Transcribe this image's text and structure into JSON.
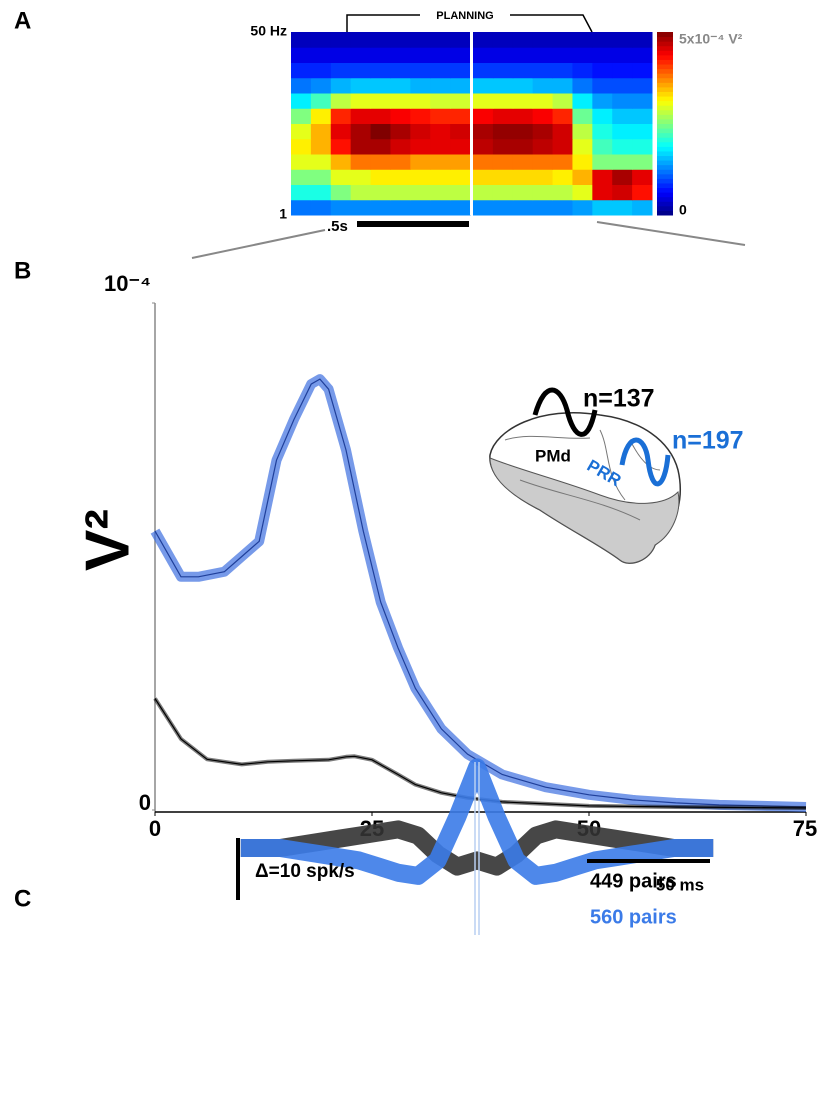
{
  "chart_data": [
    {
      "type": "heatmap",
      "panel_label": "A",
      "title": "PLANNING",
      "ylim": [
        1,
        50
      ],
      "yticks": [
        {
          "value": 50,
          "label": "50 Hz"
        },
        1
      ],
      "scale_bar": ".5s",
      "colorbar": {
        "lim": [
          0,
          5
        ],
        "ticks": [
          {
            "value": 5,
            "label": "5x10⁻⁴ V²"
          },
          0
        ]
      },
      "z": [
        [
          1.2,
          1.2,
          1.3,
          1.3,
          1.3,
          1.3,
          1.3,
          1.3,
          1.3,
          1.3,
          1.3,
          1.3,
          1.3,
          1.3,
          1.4,
          1.6,
          1.6,
          1.5
        ],
        [
          2,
          2,
          2.5,
          2.8,
          2.8,
          2.8,
          2.8,
          2.8,
          2.8,
          2.8,
          2.8,
          2.8,
          2.8,
          2.8,
          3,
          4.5,
          4.6,
          4.3
        ],
        [
          2.5,
          2.5,
          3,
          3,
          3.2,
          3.2,
          3.2,
          3.2,
          3.2,
          3.3,
          3.3,
          3.3,
          3.3,
          3.2,
          3.5,
          4.5,
          4.8,
          4.5
        ],
        [
          3,
          3,
          3.5,
          3.8,
          3.8,
          3.8,
          3.6,
          3.6,
          3.6,
          3.8,
          3.8,
          3.8,
          3.8,
          3.8,
          3.2,
          2.5,
          2.5,
          2.5
        ],
        [
          3.2,
          3.5,
          4.3,
          4.8,
          4.8,
          4.6,
          4.5,
          4.5,
          4.5,
          4.7,
          4.8,
          4.8,
          4.7,
          4.6,
          3,
          2.2,
          2,
          2
        ],
        [
          3,
          3.5,
          4.5,
          4.8,
          5,
          4.8,
          4.6,
          4.5,
          4.6,
          4.8,
          4.9,
          4.9,
          4.8,
          4.6,
          2.8,
          2,
          1.8,
          1.8
        ],
        [
          2.5,
          3.2,
          4.2,
          4.5,
          4.5,
          4.4,
          4.3,
          4.2,
          4.2,
          4.4,
          4.5,
          4.5,
          4.4,
          4.2,
          2.4,
          1.8,
          1.6,
          1.6
        ],
        [
          1.8,
          2.2,
          2.8,
          3,
          3,
          3,
          3,
          2.9,
          2.9,
          3,
          3,
          3,
          3,
          2.8,
          1.8,
          1.4,
          1.3,
          1.3
        ],
        [
          1.2,
          1.3,
          1.5,
          1.6,
          1.6,
          1.6,
          1.5,
          1.5,
          1.5,
          1.6,
          1.6,
          1.6,
          1.5,
          1.5,
          1.2,
          1,
          1,
          1
        ],
        [
          0.8,
          0.8,
          0.9,
          0.9,
          0.9,
          0.9,
          0.9,
          0.9,
          0.9,
          0.9,
          0.9,
          0.9,
          0.9,
          0.9,
          0.8,
          0.7,
          0.7,
          0.7
        ],
        [
          0.5,
          0.5,
          0.5,
          0.5,
          0.5,
          0.5,
          0.5,
          0.5,
          0.5,
          0.5,
          0.5,
          0.5,
          0.5,
          0.5,
          0.5,
          0.5,
          0.5,
          0.5
        ],
        [
          0.3,
          0.3,
          0.3,
          0.3,
          0.3,
          0.3,
          0.3,
          0.3,
          0.3,
          0.3,
          0.3,
          0.3,
          0.3,
          0.3,
          0.3,
          0.3,
          0.3,
          0.3
        ]
      ]
    },
    {
      "type": "line",
      "panel_label": "B",
      "ylabel": "V²",
      "xlim": [
        0,
        75
      ],
      "xticks": [
        0,
        25,
        50,
        75
      ],
      "ylim": [
        0,
        1
      ],
      "yticks": [
        0,
        {
          "value": 1,
          "label": "10⁻⁴"
        }
      ],
      "series": [
        {
          "name": "PRR",
          "color": "#3d6fe0",
          "x": [
            0,
            3,
            5,
            8,
            10,
            12,
            14,
            16,
            18,
            19,
            20,
            22,
            24,
            26,
            28,
            30,
            33,
            36,
            40,
            45,
            50,
            55,
            60,
            65,
            70,
            75
          ],
          "values": [
            0.55,
            0.46,
            0.46,
            0.47,
            0.5,
            0.53,
            0.69,
            0.77,
            0.84,
            0.85,
            0.83,
            0.71,
            0.55,
            0.41,
            0.32,
            0.24,
            0.16,
            0.11,
            0.07,
            0.045,
            0.03,
            0.02,
            0.014,
            0.01,
            0.008,
            0.006
          ]
        },
        {
          "name": "PMd",
          "color": "#111111",
          "x": [
            0,
            3,
            6,
            10,
            13,
            16,
            20,
            22,
            23,
            25,
            28,
            30,
            33,
            36,
            40,
            45,
            50,
            60,
            75
          ],
          "values": [
            0.22,
            0.14,
            0.1,
            0.09,
            0.095,
            0.097,
            0.099,
            0.105,
            0.106,
            0.099,
            0.07,
            0.05,
            0.034,
            0.024,
            0.016,
            0.012,
            0.008,
            0.006,
            0.004
          ]
        }
      ],
      "annotations": [
        {
          "text": "n=137",
          "color": "#000000"
        },
        {
          "text": "n=197",
          "color": "#1a6fd6"
        }
      ]
    },
    {
      "type": "band",
      "panel_label": "C",
      "x": [
        -96,
        -88,
        -80,
        -72,
        -64,
        -56,
        -48,
        -40,
        -32,
        -24,
        -16,
        -8,
        0,
        8,
        16,
        24,
        32,
        40,
        48,
        56,
        64,
        72,
        80,
        88,
        96
      ],
      "series": [
        {
          "name": "449 pairs",
          "color": "#333333",
          "values": [
            0,
            0,
            0,
            0.5,
            1,
            1.5,
            2,
            2.5,
            3,
            2,
            -1,
            -3,
            -2,
            -3,
            -1,
            2,
            3,
            2.5,
            2,
            1.5,
            1,
            0.5,
            0,
            0,
            0
          ]
        },
        {
          "name": "560 pairs",
          "color": "#3b7be8",
          "values": [
            0,
            0,
            0,
            -0.5,
            -1,
            -1.5,
            -2,
            -3,
            -4,
            -4.5,
            -2,
            5,
            13,
            5,
            -2,
            -4.5,
            -4,
            -3,
            -2,
            -1.5,
            -1,
            -0.5,
            0,
            0,
            0
          ]
        }
      ],
      "scale_bars": [
        {
          "value": 10,
          "label": "Δ=10 spk/s"
        },
        {
          "value": 50,
          "label": "50 ms"
        }
      ]
    }
  ]
}
